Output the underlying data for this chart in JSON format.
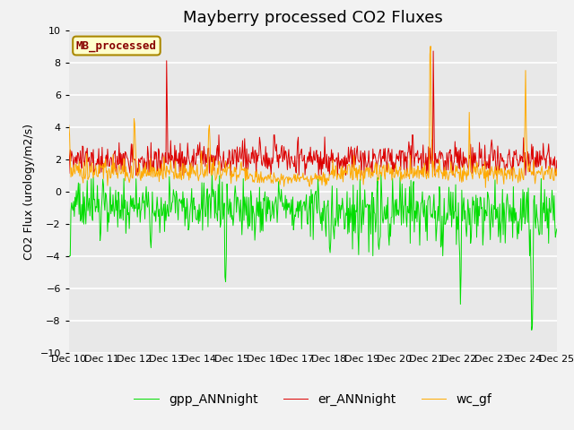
{
  "title": "Mayberry processed CO2 Fluxes",
  "ylabel": "CO2 Flux (urology/m2/s)",
  "ylim": [
    -10,
    10
  ],
  "xlim_days": [
    10,
    25
  ],
  "n_points": 720,
  "fig_facecolor": "#f2f2f2",
  "plot_bg_color": "#e8e8e8",
  "line_colors": {
    "gpp": "#00dd00",
    "er": "#dd0000",
    "wc": "#ffaa00"
  },
  "legend_labels": {
    "gpp": "gpp_ANNnight",
    "er": "er_ANNnight",
    "wc": "wc_gf"
  },
  "inset_label": "MB_processed",
  "inset_label_color": "#880000",
  "inset_bg_color": "#ffffcc",
  "inset_border_color": "#aa8800",
  "tick_dates": [
    "Dec 10",
    "Dec 11",
    "Dec 12",
    "Dec 13",
    "Dec 14",
    "Dec 15",
    "Dec 16",
    "Dec 17",
    "Dec 18",
    "Dec 19",
    "Dec 20",
    "Dec 21",
    "Dec 22",
    "Dec 23",
    "Dec 24",
    "Dec 25"
  ],
  "title_fontsize": 13,
  "axis_fontsize": 9,
  "tick_fontsize": 8,
  "legend_fontsize": 10
}
